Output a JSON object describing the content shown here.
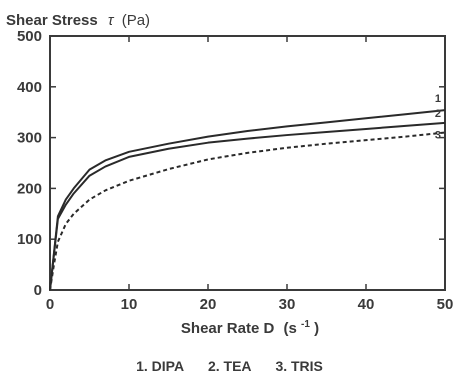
{
  "chart_data": {
    "type": "line",
    "ylabel_main": "Shear Stress",
    "ylabel_symbol": "τ",
    "ylabel_unit": "(Pa)",
    "xlabel_main": "Shear Rate D",
    "xlabel_unit_base": "(s",
    "xlabel_unit_exp": "-1",
    "xlabel_unit_close": ")",
    "xlim": [
      0,
      50
    ],
    "ylim": [
      0,
      500
    ],
    "x_ticks": [
      "0",
      "10",
      "20",
      "30",
      "40",
      "50"
    ],
    "y_ticks": [
      "0",
      "100",
      "200",
      "300",
      "400",
      "500"
    ],
    "grid": false,
    "series": [
      {
        "label": "1",
        "style": "solid",
        "x": [
          0,
          1,
          2,
          3,
          5,
          7,
          10,
          15,
          20,
          25,
          30,
          35,
          40,
          45,
          50
        ],
        "y": [
          0,
          145,
          178,
          200,
          237,
          255,
          272,
          288,
          302,
          313,
          322,
          330,
          338,
          346,
          354
        ]
      },
      {
        "label": "2",
        "style": "solid",
        "x": [
          0,
          1,
          2,
          3,
          5,
          7,
          10,
          15,
          20,
          25,
          30,
          35,
          40,
          45,
          50
        ],
        "y": [
          0,
          140,
          168,
          190,
          225,
          243,
          262,
          278,
          290,
          298,
          305,
          311,
          317,
          323,
          329
        ]
      },
      {
        "label": "3",
        "style": "dashed",
        "x": [
          0,
          0.5,
          1,
          2,
          3,
          5,
          7,
          10,
          15,
          20,
          25,
          30,
          35,
          40,
          45,
          50
        ],
        "y": [
          0,
          50,
          95,
          130,
          150,
          178,
          196,
          215,
          238,
          257,
          270,
          280,
          288,
          295,
          302,
          310
        ]
      }
    ],
    "legend": [
      "1. DIPA",
      "2. TEA",
      "3. TRIS"
    ]
  }
}
